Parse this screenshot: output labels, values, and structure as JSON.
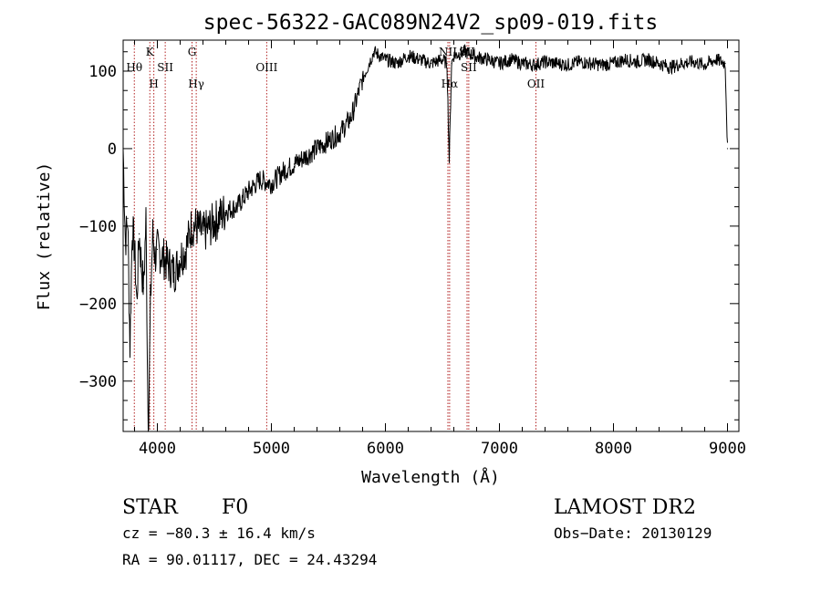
{
  "chart_data": {
    "type": "line",
    "title": "spec-56322-GAC089N24V2_sp09-019.fits",
    "xlabel": "Wavelength (Å)",
    "ylabel": "Flux (relative)",
    "xlim": [
      3700,
      9100
    ],
    "ylim": [
      -365,
      140
    ],
    "xticks": [
      4000,
      5000,
      6000,
      7000,
      8000,
      9000
    ],
    "xtick_labels": [
      "4000",
      "5000",
      "6000",
      "7000",
      "8000",
      "9000"
    ],
    "yticks": [
      100,
      0,
      -100,
      -200,
      -300
    ],
    "ytick_labels": [
      "100",
      "0",
      "−100",
      "−200",
      "−300"
    ],
    "grid": false,
    "series": [
      {
        "name": "spectrum",
        "color": "#000000",
        "x": [
          3700,
          3720,
          3740,
          3760,
          3780,
          3800,
          3820,
          3840,
          3860,
          3880,
          3900,
          3920,
          3940,
          3950,
          3960,
          3980,
          4000,
          4050,
          4100,
          4150,
          4200,
          4250,
          4300,
          4340,
          4400,
          4500,
          4600,
          4700,
          4800,
          4900,
          5000,
          5100,
          5200,
          5300,
          5400,
          5500,
          5600,
          5700,
          5800,
          5900,
          6000,
          6100,
          6200,
          6300,
          6400,
          6500,
          6540,
          6560,
          6580,
          6600,
          6700,
          6800,
          6900,
          7000,
          7100,
          7200,
          7300,
          7400,
          7500,
          7600,
          7700,
          7800,
          7900,
          8000,
          8100,
          8200,
          8300,
          8400,
          8500,
          8600,
          8700,
          8800,
          8900,
          8980,
          9000
        ],
        "values": [
          0,
          -120,
          -90,
          -255,
          -100,
          -130,
          -200,
          -110,
          -150,
          -180,
          -90,
          -370,
          -200,
          -150,
          -110,
          -140,
          -130,
          -140,
          -150,
          -160,
          -140,
          -130,
          -100,
          -100,
          -110,
          -95,
          -80,
          -75,
          -55,
          -40,
          -45,
          -30,
          -20,
          -10,
          0,
          10,
          20,
          40,
          90,
          125,
          115,
          110,
          120,
          115,
          110,
          115,
          110,
          -15,
          110,
          120,
          125,
          118,
          115,
          110,
          115,
          110,
          108,
          112,
          110,
          108,
          112,
          110,
          108,
          110,
          115,
          112,
          115,
          110,
          105,
          110,
          112,
          108,
          115,
          110,
          0
        ]
      }
    ],
    "annotations": [
      {
        "label": "Hθ",
        "wavelength": 3798,
        "position": "upper"
      },
      {
        "label": "K",
        "wavelength": 3934,
        "position": "top"
      },
      {
        "label": "H",
        "wavelength": 3969,
        "position": "lower"
      },
      {
        "label": "SII",
        "wavelength": 4069,
        "position": "upper"
      },
      {
        "label": "G",
        "wavelength": 4304,
        "position": "top"
      },
      {
        "label": "Hγ",
        "wavelength": 4341,
        "position": "lower"
      },
      {
        "label": "OIII",
        "wavelength": 4959,
        "position": "upper"
      },
      {
        "label": "NII",
        "wavelength": 6548,
        "position": "top"
      },
      {
        "label": "Hα",
        "wavelength": 6563,
        "position": "lower"
      },
      {
        "label": "SII",
        "wavelength": 6716,
        "position": "top"
      },
      {
        "label": "SII",
        "wavelength": 6731,
        "position": "upper"
      },
      {
        "label": "OII",
        "wavelength": 7320,
        "position": "lower"
      }
    ]
  },
  "info": {
    "class": "STAR",
    "subclass": "F0",
    "survey": "LAMOST DR2",
    "velocity": "cz = −80.3 ± 16.4 km/s",
    "obs_date": "Obs−Date: 20130129",
    "coords": "RA =  90.01117, DEC =  24.43294"
  },
  "colors": {
    "line": "#000000",
    "marker_line": "#b22222",
    "axis": "#000000",
    "background": "#ffffff"
  }
}
